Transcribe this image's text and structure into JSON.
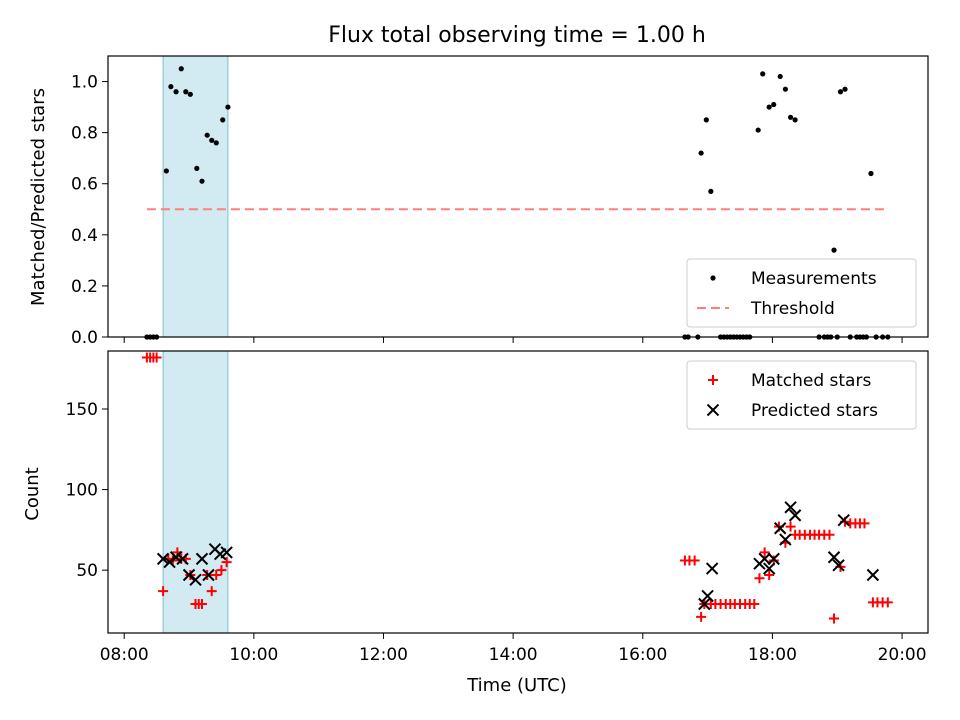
{
  "chart_data": [
    {
      "type": "scatter",
      "title": "Flux total observing time = 1.00 h",
      "xlabel": "",
      "ylabel": "Matched/Predicted stars",
      "xlim": [
        7.75,
        20.4
      ],
      "ylim": [
        0,
        1.1
      ],
      "yticks": [
        0.0,
        0.2,
        0.4,
        0.6,
        0.8,
        1.0
      ],
      "ytick_labels": [
        "0.0",
        "0.2",
        "0.4",
        "0.6",
        "0.8",
        "1.0"
      ],
      "xticks": [
        8,
        10,
        12,
        14,
        16,
        18,
        20
      ],
      "shaded_region": [
        8.6,
        9.6
      ],
      "shaded_color": "#add8e6",
      "legend_position": "lower right",
      "series": [
        {
          "name": "Measurements",
          "marker": "dot",
          "color": "#000000",
          "x": [
            8.35,
            8.4,
            8.45,
            8.5,
            8.65,
            8.72,
            8.8,
            8.88,
            8.95,
            9.02,
            9.12,
            9.2,
            9.28,
            9.35,
            9.42,
            9.52,
            9.6,
            16.65,
            16.7,
            16.85,
            16.9,
            16.98,
            17.05,
            17.2,
            17.25,
            17.3,
            17.35,
            17.4,
            17.45,
            17.5,
            17.55,
            17.6,
            17.65,
            17.78,
            17.85,
            17.95,
            18.02,
            18.12,
            18.2,
            18.28,
            18.35,
            18.72,
            18.8,
            18.85,
            18.9,
            18.95,
            19.0,
            19.05,
            19.12,
            19.2,
            19.3,
            19.35,
            19.4,
            19.45,
            19.52,
            19.6,
            19.7,
            19.78
          ],
          "y": [
            0.0,
            0.0,
            0.0,
            0.0,
            0.65,
            0.98,
            0.96,
            1.05,
            0.96,
            0.95,
            0.66,
            0.61,
            0.79,
            0.77,
            0.76,
            0.85,
            0.9,
            0.0,
            0.0,
            0.0,
            0.72,
            0.85,
            0.57,
            0.0,
            0.0,
            0.0,
            0.0,
            0.0,
            0.0,
            0.0,
            0.0,
            0.0,
            0.0,
            0.81,
            1.03,
            0.9,
            0.91,
            1.02,
            0.97,
            0.86,
            0.85,
            0.0,
            0.0,
            0.0,
            0.0,
            0.34,
            0.0,
            0.96,
            0.97,
            0.0,
            0.0,
            0.0,
            0.0,
            0.0,
            0.64,
            0.0,
            0.0,
            0.0
          ]
        },
        {
          "name": "Threshold",
          "marker": "dashed-line",
          "color": "#ff7f7f",
          "x": [
            8.35,
            19.78
          ],
          "y": [
            0.5,
            0.5
          ]
        }
      ]
    },
    {
      "type": "scatter",
      "title": "",
      "xlabel": "Time (UTC)",
      "ylabel": "Count",
      "xlim": [
        7.75,
        20.4
      ],
      "ylim": [
        11,
        186
      ],
      "yticks": [
        50,
        100,
        150
      ],
      "ytick_labels": [
        "50",
        "100",
        "150"
      ],
      "xticks": [
        8,
        10,
        12,
        14,
        16,
        18,
        20
      ],
      "xtick_labels": [
        "08:00",
        "10:00",
        "12:00",
        "14:00",
        "16:00",
        "18:00",
        "20:00"
      ],
      "shaded_region": [
        8.6,
        9.6
      ],
      "shaded_color": "#add8e6",
      "legend_position": "upper right",
      "series": [
        {
          "name": "Matched stars",
          "marker": "plus",
          "color": "#ff0000",
          "x": [
            8.35,
            8.4,
            8.45,
            8.5,
            8.6,
            8.68,
            8.75,
            8.82,
            8.88,
            8.95,
            9.02,
            9.1,
            9.15,
            9.2,
            9.28,
            9.35,
            9.42,
            9.5,
            9.58,
            16.65,
            16.72,
            16.8,
            16.9,
            16.95,
            17.05,
            17.12,
            17.2,
            17.28,
            17.35,
            17.42,
            17.5,
            17.58,
            17.65,
            17.72,
            17.8,
            17.88,
            17.95,
            18.02,
            18.1,
            18.2,
            18.28,
            18.35,
            18.42,
            18.5,
            18.58,
            18.65,
            18.72,
            18.8,
            18.88,
            18.95,
            19.05,
            19.12,
            19.2,
            19.28,
            19.35,
            19.42,
            19.55,
            19.62,
            19.7,
            19.78
          ],
          "y": [
            182,
            182,
            182,
            182,
            37,
            57,
            56,
            61,
            57,
            57,
            47,
            29,
            29,
            29,
            47,
            37,
            47,
            50,
            55,
            56,
            56,
            56,
            21,
            29,
            29,
            29,
            29,
            29,
            29,
            29,
            29,
            29,
            29,
            29,
            45,
            61,
            47,
            56,
            77,
            67,
            77,
            72,
            72,
            72,
            72,
            72,
            72,
            72,
            72,
            20,
            52,
            80,
            79,
            79,
            79,
            79,
            30,
            30,
            30,
            30
          ]
        },
        {
          "name": "Predicted stars",
          "marker": "x",
          "color": "#000000",
          "x": [
            8.6,
            8.7,
            8.8,
            8.9,
            9.0,
            9.1,
            9.2,
            9.3,
            9.4,
            9.48,
            9.58,
            16.95,
            17.0,
            17.07,
            17.8,
            17.88,
            17.95,
            18.02,
            18.12,
            18.2,
            18.28,
            18.35,
            18.95,
            19.02,
            19.1,
            19.55
          ],
          "y": [
            57,
            55,
            58,
            57,
            47,
            44,
            57,
            47,
            63,
            60,
            61,
            29,
            34,
            51,
            54,
            57,
            51,
            57,
            76,
            69,
            89,
            84,
            58,
            53,
            81,
            47
          ]
        }
      ]
    }
  ]
}
